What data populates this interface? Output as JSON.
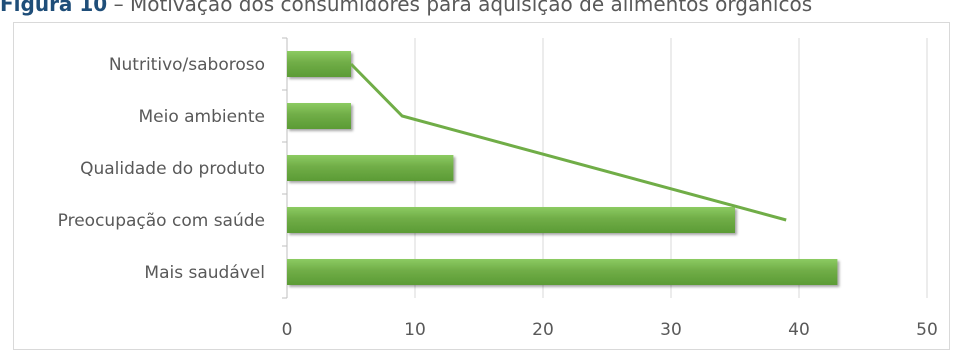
{
  "title": {
    "label": "Figura 10",
    "separator": " – ",
    "text": "Motivação dos consumidores para aquisição de alimentos orgânicos"
  },
  "chart_data": {
    "type": "bar",
    "orientation": "horizontal",
    "categories": [
      "Nutritivo/saboroso",
      "Meio ambiente",
      "Qualidade do produto",
      "Preocupação com saúde",
      "Mais saudável"
    ],
    "values": [
      5,
      5,
      13,
      35,
      43
    ],
    "xlim": [
      0,
      50
    ],
    "x_ticks": [
      0,
      10,
      20,
      30,
      40,
      50
    ],
    "grid": "vertical",
    "legend": "none",
    "bar_color": "#70ad47",
    "trendline": {
      "type": "line",
      "color": "#70ad47",
      "points": [
        {
          "category": "Nutritivo/saboroso",
          "x": 5
        },
        {
          "category": "Meio ambiente",
          "x": 9
        },
        {
          "category": "Preocupação com saúde",
          "x": 39
        }
      ]
    }
  }
}
